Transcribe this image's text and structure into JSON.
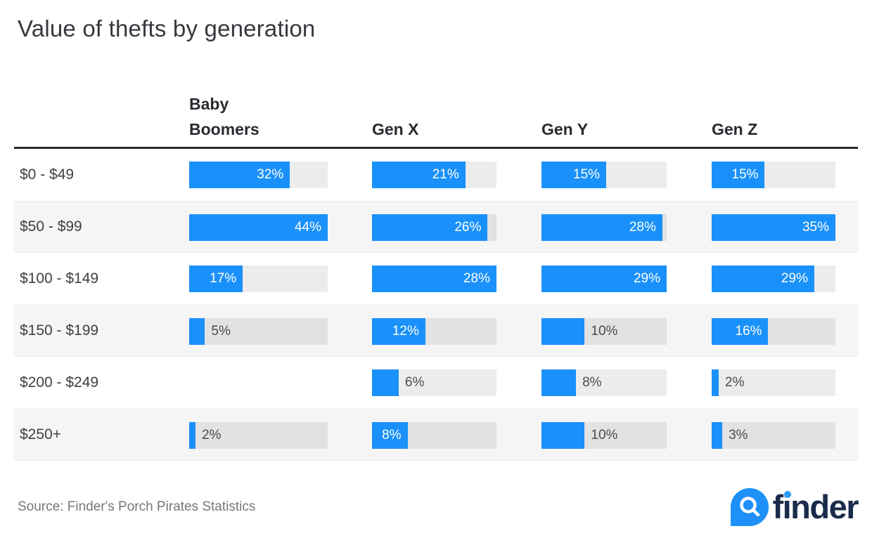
{
  "title": "Value of thefts by generation",
  "source_note": "Source: Finder's Porch Pirates Statistics",
  "logo": {
    "text": "finder",
    "icon": "magnifier-droplet-icon"
  },
  "colors": {
    "bar_blue": "#1a91fa",
    "track_gray": "#ececec",
    "track_gray_striped": "#e2e2e2",
    "stripe_row": "#f5f5f5",
    "header_text": "#2a2a31",
    "title_text": "#37373e",
    "row_label_text": "#3e3e46",
    "outside_label_text": "#4b4b52",
    "inside_label_text": "#ffffff",
    "divider": "#2b2b30",
    "source_text": "#75757c",
    "logo_navy": "#1b2b4b",
    "logo_blue": "#1e90f7"
  },
  "chart_data": {
    "type": "bar",
    "orientation": "horizontal",
    "title": "Value of thefts by generation",
    "unit": "%",
    "value_label_format": "{value}%",
    "normalization": "each bar scaled relative to its own column (series) maximum",
    "legend_position": "column headers on top",
    "grid": false,
    "categories": [
      "$0 - $49",
      "$50 - $99",
      "$100 - $149",
      "$150 - $199",
      "$200 - $249",
      "$250+"
    ],
    "series": [
      {
        "name": "Baby Boomers",
        "values": [
          32,
          44,
          17,
          5,
          null,
          2
        ],
        "label_inside": [
          true,
          true,
          true,
          false,
          null,
          false
        ]
      },
      {
        "name": "Gen X",
        "values": [
          21,
          26,
          28,
          12,
          6,
          8
        ],
        "label_inside": [
          true,
          true,
          true,
          true,
          false,
          true
        ]
      },
      {
        "name": "Gen Y",
        "values": [
          15,
          28,
          29,
          10,
          8,
          10
        ],
        "label_inside": [
          true,
          true,
          true,
          false,
          false,
          false
        ]
      },
      {
        "name": "Gen Z",
        "values": [
          15,
          35,
          29,
          16,
          2,
          3
        ],
        "label_inside": [
          true,
          true,
          true,
          true,
          false,
          false
        ]
      }
    ]
  }
}
